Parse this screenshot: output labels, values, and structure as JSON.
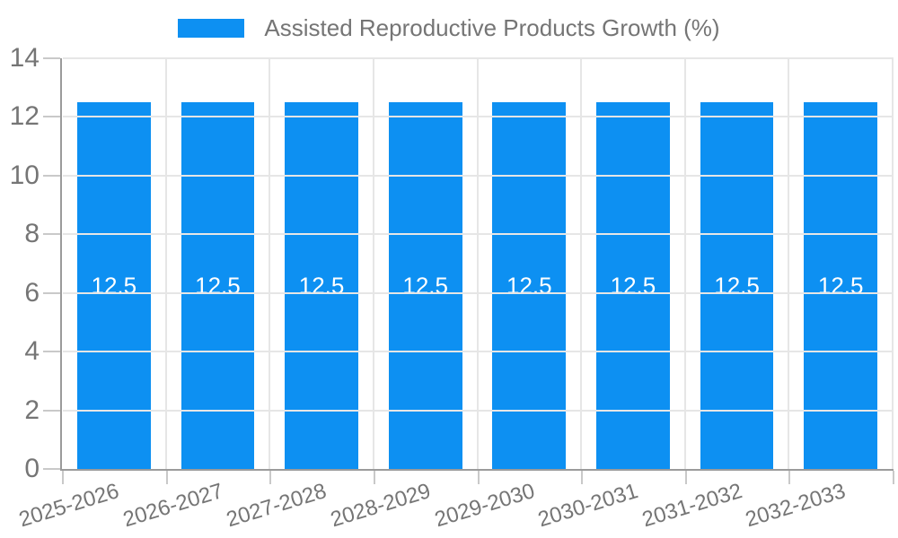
{
  "legend": {
    "items": [
      {
        "label": "Assisted Reproductive Products Growth (%)"
      }
    ]
  },
  "chart_data": {
    "type": "bar",
    "title": "",
    "categories": [
      "2025-2026",
      "2026-2027",
      "2027-2028",
      "2028-2029",
      "2029-2030",
      "2030-2031",
      "2031-2032",
      "2032-2033"
    ],
    "series": [
      {
        "name": "Assisted Reproductive Products Growth (%)",
        "values": [
          12.5,
          12.5,
          12.5,
          12.5,
          12.5,
          12.5,
          12.5,
          12.5
        ]
      }
    ],
    "bar_value_labels": [
      "12.5",
      "12.5",
      "12.5",
      "12.5",
      "12.5",
      "12.5",
      "12.5",
      "12.5"
    ],
    "ylim": [
      0,
      14
    ],
    "yticks": [
      0,
      2,
      4,
      6,
      8,
      10,
      12,
      14
    ],
    "xlabel": "",
    "ylabel": "",
    "grid": true,
    "legend_position": "top",
    "colors": {
      "bar": "#0d90f2",
      "gridline": "#e6e6e6",
      "axis": "#9b9b9b",
      "tick": "#c9c9c9",
      "tick_text": "#757575",
      "value_label_text": "#ffffff"
    }
  }
}
